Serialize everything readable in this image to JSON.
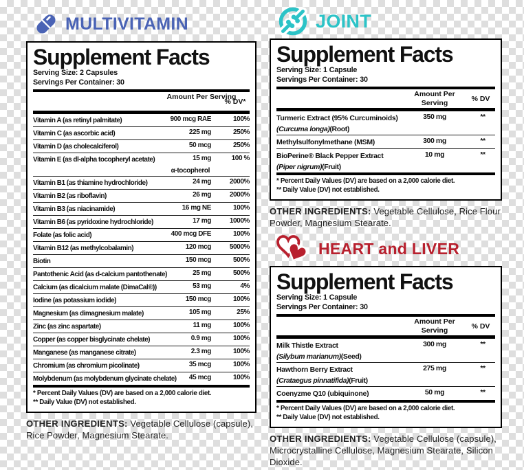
{
  "colors": {
    "multivitamin_accent": "#4a63b5",
    "joint_accent": "#2cc3c7",
    "heart_accent": "#b8202e",
    "checker_light": "#ffffff",
    "checker_dark": "#dedede"
  },
  "panels": {
    "multivitamin": {
      "title": "MULTIVITAMIN",
      "icon": "capsule-icon",
      "facts_title": "Supplement Facts",
      "serving_size": "Serving Size: 2 Capsules",
      "servings_per_container": "Servings Per Container: 30",
      "col_amount": "Amount Per Serving",
      "col_dv": "% DV*",
      "rows": [
        {
          "name": "Vitamin A (as retinyl palmitate)",
          "amount": "900 mcg RAE",
          "dv": "100%"
        },
        {
          "name": "Vitamin C (as ascorbic acid)",
          "amount": "225 mg",
          "dv": "250%"
        },
        {
          "name": "Vitamin D (as cholecalciferol)",
          "amount": "50 mcg",
          "dv": "250%"
        },
        {
          "name": "Vitamin E (as dl-alpha tocopheryl acetate)",
          "amount": "15 mg",
          "dv": "100 %",
          "sub_amount": "α-tocopherol"
        },
        {
          "name": "Vitamin B1 (as thiamine hydrochloride)",
          "amount": "24 mg",
          "dv": "2000%"
        },
        {
          "name": "Vitamin B2 (as riboflavin)",
          "amount": "26 mg",
          "dv": "2000%"
        },
        {
          "name": "Vitamin B3 (as niacinamide)",
          "amount": "16 mg NE",
          "dv": "100%"
        },
        {
          "name": "Vitamin B6 (as pyridoxine hydrochloride)",
          "amount": "17 mg",
          "dv": "1000%"
        },
        {
          "name": "Folate (as folic acid)",
          "amount": "400 mcg DFE",
          "dv": "100%"
        },
        {
          "name": "Vitamin B12 (as methylcobalamin)",
          "amount": "120 mcg",
          "dv": "5000%"
        },
        {
          "name": "Biotin",
          "amount": "150 mcg",
          "dv": "500%"
        },
        {
          "name": "Pantothenic Acid (as d-calcium pantothenate)",
          "amount": "25 mg",
          "dv": "500%"
        },
        {
          "name": "Calcium (as dicalcium malate (DimaCal®))",
          "amount": "53 mg",
          "dv": "4%"
        },
        {
          "name": "Iodine (as potassium iodide)",
          "amount": "150 mcg",
          "dv": "100%"
        },
        {
          "name": "Magnesium (as dimagnesium malate)",
          "amount": "105 mg",
          "dv": "25%"
        },
        {
          "name": "Zinc (as zinc aspartate)",
          "amount": "11 mg",
          "dv": "100%"
        },
        {
          "name": "Copper (as copper bisglycinate chelate)",
          "amount": "0.9 mg",
          "dv": "100%"
        },
        {
          "name": "Manganese (as manganese citrate)",
          "amount": "2.3 mg",
          "dv": "100%"
        },
        {
          "name": "Chromium (as chromium picolinate)",
          "amount": "35 mcg",
          "dv": "100%"
        },
        {
          "name": "Molybdenum (as molybdenum glycinate chelate)",
          "amount": "45 mcg",
          "dv": "100%"
        }
      ],
      "footnotes": [
        "* Percent Daily Values (DV) are based on a 2,000 calorie diet.",
        "** Daily Value (DV) not established."
      ],
      "other_label": "OTHER INGREDIENTS:",
      "other_text": "Vegetable Cellulose (capsule), Rice Powder, Magnesium Stearate."
    },
    "joint": {
      "title": "JOINT",
      "icon": "joint-icon",
      "facts_title": "Supplement Facts",
      "serving_size": "Serving Size: 1 Capsule",
      "servings_per_container": "Servings Per Container: 30",
      "col_amount": "Amount Per Serving",
      "col_dv": "% DV",
      "rows": [
        {
          "name": "Turmeric Extract (95% Curcuminoids)",
          "sub_latin": "(Curcuma longa)",
          "sub_part": "(Root)",
          "amount": "350 mg",
          "dv": "**"
        },
        {
          "name": "Methylsulfonylmethane (MSM)",
          "amount": "300 mg",
          "dv": "**"
        },
        {
          "name": "BioPerine® Black Pepper Extract",
          "sub_latin": "(Piper nigrum)",
          "sub_part": "(Fruit)",
          "amount": "10 mg",
          "dv": "**"
        }
      ],
      "footnotes": [
        "* Percent Daily Values (DV) are based on a 2,000 calorie diet.",
        "** Daily Value (DV) not established."
      ],
      "other_label": "OTHER INGREDIENTS:",
      "other_text": "Vegetable Cellulose, Rice Flour Powder, Magnesium Stearate."
    },
    "heart_liver": {
      "title": "HEART and LIVER",
      "icon": "heart-icon",
      "facts_title": "Supplement Facts",
      "serving_size": "Serving Size: 1 Capsule",
      "servings_per_container": "Servings Per Container: 30",
      "col_amount": "Amount Per Serving",
      "col_dv": "% DV",
      "rows": [
        {
          "name": "Milk Thistle Extract",
          "sub_latin": "(Silybum marianum)",
          "sub_part": "(Seed)",
          "amount": "300 mg",
          "dv": "**"
        },
        {
          "name": "Hawthorn Berry Extract",
          "sub_latin": "(Crataegus pinnatifida)",
          "sub_part": "(Fruit)",
          "amount": "275 mg",
          "dv": "**"
        },
        {
          "name": "Coenyzme Q10 (ubiquinone)",
          "amount": "50 mg",
          "dv": "**"
        }
      ],
      "footnotes": [
        "* Percent Daily Values (DV) are based on a 2,000 calorie diet.",
        "** Daily Value (DV) not established."
      ],
      "other_label": "OTHER INGREDIENTS:",
      "other_text": "Vegetable Cellulose (capsule), Microcrystalline Cellulose, Magnesium Stearate, Silicon Dioxide."
    }
  }
}
